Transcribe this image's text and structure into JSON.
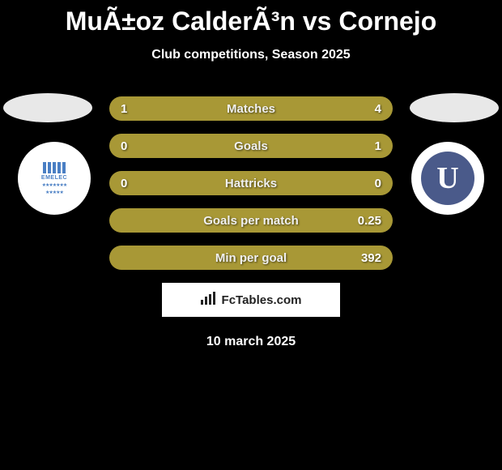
{
  "header": {
    "title": "MuÃ±oz CalderÃ³n vs Cornejo",
    "subtitle": "Club competitions, Season 2025"
  },
  "players": {
    "left": {
      "team_name": "EMELEC",
      "badge_color": "#4a7fc4"
    },
    "right": {
      "team_letter": "U",
      "badge_bg": "#4a5a8a"
    }
  },
  "stats": [
    {
      "label": "Matches",
      "left_value": "1",
      "right_value": "4",
      "left_pct": 20,
      "right_pct": 80
    },
    {
      "label": "Goals",
      "left_value": "0",
      "right_value": "1",
      "left_pct": 0,
      "right_pct": 100
    },
    {
      "label": "Hattricks",
      "left_value": "0",
      "right_value": "0",
      "left_pct": 50,
      "right_pct": 50
    },
    {
      "label": "Goals per match",
      "left_value": "",
      "right_value": "0.25",
      "left_pct": 0,
      "right_pct": 100
    },
    {
      "label": "Min per goal",
      "left_value": "",
      "right_value": "392",
      "left_pct": 0,
      "right_pct": 100
    }
  ],
  "branding": {
    "text": "FcTables.com"
  },
  "footer": {
    "date": "10 march 2025"
  },
  "colors": {
    "background": "#000000",
    "bar_base": "#a89836",
    "bar_fill": "#8a7a26",
    "text": "#ffffff"
  }
}
